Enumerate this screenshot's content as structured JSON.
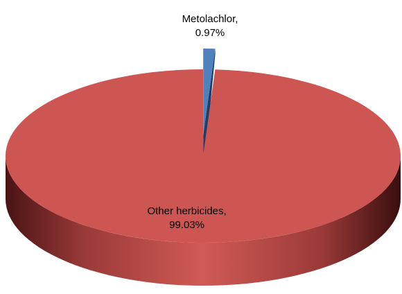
{
  "chart_data": {
    "type": "pie",
    "categories": [
      "Metolachlor,",
      "Other herbicides,"
    ],
    "values": [
      0.97,
      99.03
    ],
    "value_labels": [
      "0.97%",
      "99.03%"
    ],
    "colors": [
      "#4f81bd",
      "#cd5653"
    ]
  }
}
